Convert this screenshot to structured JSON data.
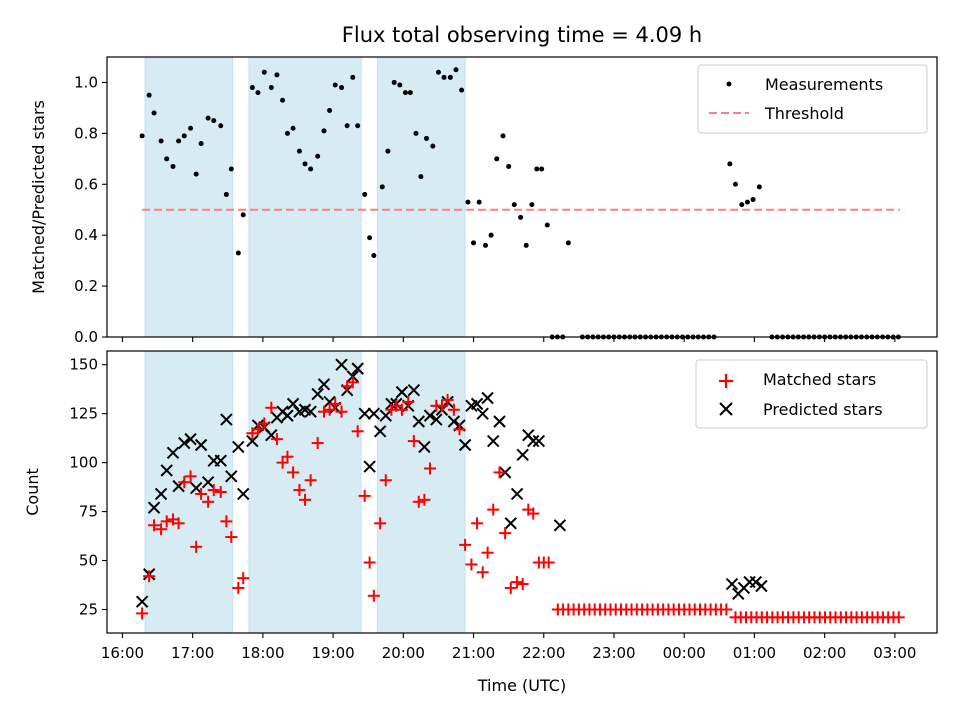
{
  "chart_data": [
    {
      "type": "scatter",
      "title": "Flux total observing time = 4.09 h",
      "xlabel": "",
      "ylabel": "Matched/Predicted stars",
      "ylim": [
        0,
        1.1
      ],
      "yticks": [
        "0.0",
        "0.2",
        "0.4",
        "0.6",
        "0.8",
        "1.0"
      ],
      "grid": false,
      "legend": "top-right",
      "shaded_intervals": [
        [
          16.32,
          17.57
        ],
        [
          17.8,
          19.4
        ],
        [
          19.63,
          20.88
        ]
      ],
      "series": [
        {
          "name": "Measurements",
          "marker": "dot",
          "color": "#000000",
          "points": [
            [
              16.28,
              0.79
            ],
            [
              16.38,
              0.95
            ],
            [
              16.45,
              0.88
            ],
            [
              16.55,
              0.77
            ],
            [
              16.63,
              0.7
            ],
            [
              16.72,
              0.67
            ],
            [
              16.8,
              0.77
            ],
            [
              16.88,
              0.79
            ],
            [
              16.97,
              0.82
            ],
            [
              17.05,
              0.64
            ],
            [
              17.12,
              0.76
            ],
            [
              17.22,
              0.86
            ],
            [
              17.3,
              0.85
            ],
            [
              17.4,
              0.83
            ],
            [
              17.48,
              0.56
            ],
            [
              17.55,
              0.66
            ],
            [
              17.65,
              0.33
            ],
            [
              17.72,
              0.48
            ],
            [
              17.85,
              0.98
            ],
            [
              17.93,
              0.96
            ],
            [
              18.02,
              1.04
            ],
            [
              18.12,
              0.98
            ],
            [
              18.2,
              1.03
            ],
            [
              18.28,
              0.93
            ],
            [
              18.35,
              0.8
            ],
            [
              18.43,
              0.82
            ],
            [
              18.52,
              0.73
            ],
            [
              18.6,
              0.68
            ],
            [
              18.68,
              0.66
            ],
            [
              18.78,
              0.71
            ],
            [
              18.87,
              0.81
            ],
            [
              18.95,
              0.89
            ],
            [
              19.03,
              0.99
            ],
            [
              19.12,
              0.98
            ],
            [
              19.2,
              0.83
            ],
            [
              19.28,
              1.02
            ],
            [
              19.35,
              0.83
            ],
            [
              19.45,
              0.56
            ],
            [
              19.52,
              0.39
            ],
            [
              19.58,
              0.32
            ],
            [
              19.7,
              0.59
            ],
            [
              19.78,
              0.73
            ],
            [
              19.87,
              1.0
            ],
            [
              19.95,
              0.99
            ],
            [
              20.03,
              0.96
            ],
            [
              20.1,
              0.96
            ],
            [
              20.18,
              0.8
            ],
            [
              20.25,
              0.63
            ],
            [
              20.33,
              0.78
            ],
            [
              20.42,
              0.75
            ],
            [
              20.5,
              1.04
            ],
            [
              20.58,
              1.02
            ],
            [
              20.67,
              1.02
            ],
            [
              20.75,
              1.05
            ],
            [
              20.83,
              0.97
            ],
            [
              20.92,
              0.53
            ],
            [
              21.0,
              0.37
            ],
            [
              21.08,
              0.53
            ],
            [
              21.17,
              0.36
            ],
            [
              21.25,
              0.4
            ],
            [
              21.33,
              0.7
            ],
            [
              21.42,
              0.79
            ],
            [
              21.5,
              0.67
            ],
            [
              21.58,
              0.52
            ],
            [
              21.67,
              0.47
            ],
            [
              21.75,
              0.36
            ],
            [
              21.83,
              0.52
            ],
            [
              21.9,
              0.66
            ],
            [
              21.97,
              0.66
            ],
            [
              22.05,
              0.44
            ],
            [
              22.35,
              0.37
            ],
            [
              24.65,
              0.68
            ],
            [
              24.73,
              0.6
            ],
            [
              24.82,
              0.52
            ],
            [
              24.9,
              0.53
            ],
            [
              24.98,
              0.54
            ],
            [
              25.07,
              0.59
            ]
          ],
          "zeros_x_ranges": [
            [
              22.12,
              22.3
            ],
            [
              22.55,
              24.45
            ],
            [
              25.25,
              27.1
            ]
          ]
        },
        {
          "name": "Threshold",
          "marker": "dashed-line",
          "color": "#ff7f7f",
          "x": [
            16.28,
            27.07
          ],
          "y": [
            0.5,
            0.5
          ]
        }
      ]
    },
    {
      "type": "scatter",
      "title": "",
      "xlabel": "Time (UTC)",
      "ylabel": "Count",
      "ylim": [
        13,
        157
      ],
      "yticks": [
        "25",
        "50",
        "75",
        "100",
        "125",
        "150"
      ],
      "xticks": [
        "16:00",
        "17:00",
        "18:00",
        "19:00",
        "20:00",
        "21:00",
        "22:00",
        "23:00",
        "00:00",
        "01:00",
        "02:00",
        "03:00"
      ],
      "xlim": [
        15.78,
        27.6
      ],
      "grid": false,
      "legend": "top-right",
      "shaded_intervals": [
        [
          16.32,
          17.57
        ],
        [
          17.8,
          19.4
        ],
        [
          19.63,
          20.88
        ]
      ],
      "series": [
        {
          "name": "Matched stars",
          "marker": "plus",
          "color": "#ff0000",
          "points": [
            [
              16.28,
              23
            ],
            [
              16.38,
              42
            ],
            [
              16.45,
              68
            ],
            [
              16.55,
              66
            ],
            [
              16.63,
              70
            ],
            [
              16.72,
              71
            ],
            [
              16.8,
              69
            ],
            [
              16.88,
              90
            ],
            [
              16.97,
              93
            ],
            [
              17.05,
              57
            ],
            [
              17.12,
              84
            ],
            [
              17.22,
              80
            ],
            [
              17.3,
              86
            ],
            [
              17.4,
              85
            ],
            [
              17.48,
              70
            ],
            [
              17.55,
              62
            ],
            [
              17.65,
              36
            ],
            [
              17.72,
              41
            ],
            [
              17.85,
              115
            ],
            [
              17.93,
              117
            ],
            [
              18.02,
              120
            ],
            [
              18.12,
              128
            ],
            [
              18.2,
              112
            ],
            [
              18.28,
              100
            ],
            [
              18.35,
              103
            ],
            [
              18.43,
              95
            ],
            [
              18.52,
              86
            ],
            [
              18.6,
              81
            ],
            [
              18.68,
              91
            ],
            [
              18.78,
              110
            ],
            [
              18.87,
              126
            ],
            [
              18.95,
              127
            ],
            [
              19.03,
              130
            ],
            [
              19.12,
              126
            ],
            [
              19.2,
              139
            ],
            [
              19.28,
              141
            ],
            [
              19.35,
              116
            ],
            [
              19.45,
              83
            ],
            [
              19.52,
              49
            ],
            [
              19.58,
              32
            ],
            [
              19.67,
              69
            ],
            [
              19.75,
              91
            ],
            [
              19.83,
              127
            ],
            [
              19.9,
              129
            ],
            [
              19.98,
              127
            ],
            [
              20.07,
              131
            ],
            [
              20.15,
              111
            ],
            [
              20.22,
              80
            ],
            [
              20.3,
              81
            ],
            [
              20.38,
              97
            ],
            [
              20.47,
              129
            ],
            [
              20.55,
              129
            ],
            [
              20.63,
              132
            ],
            [
              20.72,
              127
            ],
            [
              20.8,
              117
            ],
            [
              20.88,
              58
            ],
            [
              20.97,
              48
            ],
            [
              21.05,
              69
            ],
            [
              21.13,
              44
            ],
            [
              21.2,
              54
            ],
            [
              21.28,
              76
            ],
            [
              21.37,
              95
            ],
            [
              21.45,
              64
            ],
            [
              21.53,
              36
            ],
            [
              21.62,
              39
            ],
            [
              21.7,
              38
            ],
            [
              21.78,
              76
            ],
            [
              21.85,
              74
            ],
            [
              21.93,
              49
            ],
            [
              22.0,
              49
            ],
            [
              22.07,
              49
            ]
          ],
          "constant_runs": [
            {
              "x_start": 22.2,
              "x_end": 24.65,
              "value": 25
            },
            {
              "x_start": 24.73,
              "x_end": 27.07,
              "value": 21
            }
          ]
        },
        {
          "name": "Predicted stars",
          "marker": "x",
          "color": "#000000",
          "points": [
            [
              16.28,
              29
            ],
            [
              16.38,
              43
            ],
            [
              16.45,
              77
            ],
            [
              16.55,
              84
            ],
            [
              16.63,
              96
            ],
            [
              16.72,
              105
            ],
            [
              16.8,
              88
            ],
            [
              16.88,
              110
            ],
            [
              16.97,
              112
            ],
            [
              17.05,
              87
            ],
            [
              17.12,
              109
            ],
            [
              17.22,
              90
            ],
            [
              17.3,
              101
            ],
            [
              17.4,
              101
            ],
            [
              17.48,
              122
            ],
            [
              17.55,
              93
            ],
            [
              17.65,
              108
            ],
            [
              17.72,
              84
            ],
            [
              17.85,
              111
            ],
            [
              17.93,
              119
            ],
            [
              18.02,
              118
            ],
            [
              18.12,
              114
            ],
            [
              18.2,
              123
            ],
            [
              18.28,
              126
            ],
            [
              18.35,
              124
            ],
            [
              18.43,
              130
            ],
            [
              18.52,
              126
            ],
            [
              18.6,
              127
            ],
            [
              18.68,
              126
            ],
            [
              18.78,
              135
            ],
            [
              18.87,
              140
            ],
            [
              18.95,
              131
            ],
            [
              19.03,
              128
            ],
            [
              19.12,
              150
            ],
            [
              19.2,
              137
            ],
            [
              19.28,
              144
            ],
            [
              19.35,
              148
            ],
            [
              19.45,
              125
            ],
            [
              19.52,
              98
            ],
            [
              19.58,
              125
            ],
            [
              19.67,
              116
            ],
            [
              19.75,
              124
            ],
            [
              19.83,
              130
            ],
            [
              19.9,
              130
            ],
            [
              19.98,
              136
            ],
            [
              20.07,
              129
            ],
            [
              20.15,
              137
            ],
            [
              20.22,
              121
            ],
            [
              20.3,
              108
            ],
            [
              20.38,
              124
            ],
            [
              20.47,
              122
            ],
            [
              20.55,
              127
            ],
            [
              20.63,
              131
            ],
            [
              20.72,
              121
            ],
            [
              20.8,
              119
            ],
            [
              20.88,
              109
            ],
            [
              20.97,
              129
            ],
            [
              21.05,
              130
            ],
            [
              21.13,
              125
            ],
            [
              21.2,
              133
            ],
            [
              21.28,
              111
            ],
            [
              21.37,
              121
            ],
            [
              21.45,
              95
            ],
            [
              21.53,
              69
            ],
            [
              21.62,
              84
            ],
            [
              21.7,
              104
            ],
            [
              21.78,
              114
            ],
            [
              21.85,
              111
            ],
            [
              21.93,
              111
            ],
            [
              22.23,
              68
            ],
            [
              24.68,
              38
            ],
            [
              24.77,
              33
            ],
            [
              24.85,
              36
            ],
            [
              24.93,
              39
            ],
            [
              25.02,
              39
            ],
            [
              25.1,
              37
            ]
          ]
        }
      ]
    }
  ]
}
